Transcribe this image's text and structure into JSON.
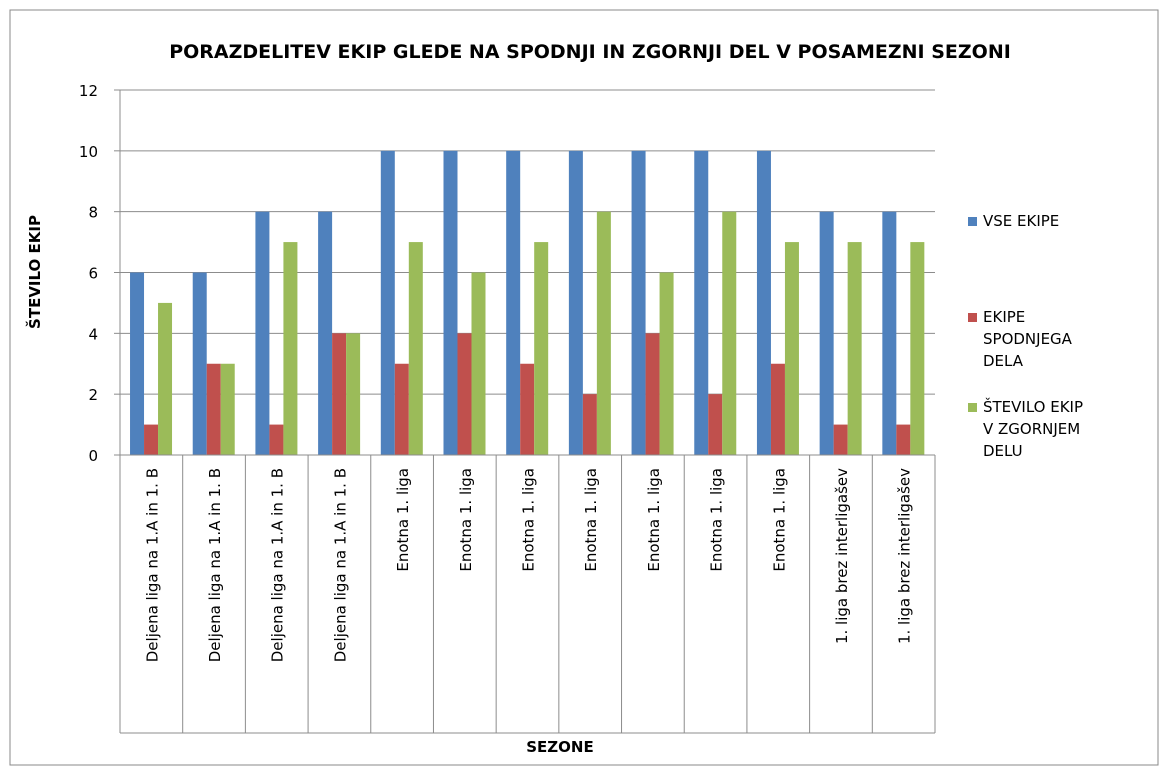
{
  "chart_data": {
    "type": "bar",
    "title": "PORAZDELITEV EKIP GLEDE NA SPODNJI IN ZGORNJI DEL V POSAMEZNI SEZONI",
    "x_label": "SEZONE",
    "y_label": "ŠTEVILO EKIP",
    "categories": [
      "Deljena liga na 1.A in 1. B",
      "Deljena liga na 1.A in 1. B",
      "Deljena liga na 1.A in 1. B",
      "Deljena liga na 1.A in 1. B",
      "Enotna 1. liga",
      "Enotna 1. liga",
      "Enotna 1. liga",
      "Enotna 1. liga",
      "Enotna 1. liga",
      "Enotna 1. liga",
      "Enotna 1. liga",
      "1. liga brez interligašev",
      "1. liga brez interligašev"
    ],
    "series": [
      {
        "name": "VSE EKIPE",
        "color": "#4f81bd",
        "values": [
          6,
          6,
          8,
          8,
          10,
          10,
          10,
          10,
          10,
          10,
          10,
          8,
          8
        ]
      },
      {
        "name": "EKIPE SPODNJEGA DELA",
        "color": "#c0504d",
        "values": [
          1,
          3,
          1,
          4,
          3,
          4,
          3,
          2,
          4,
          2,
          3,
          1,
          1
        ]
      },
      {
        "name": "ŠTEVILO EKIP V ZGORNJEM DELU",
        "color": "#9bbb59",
        "values": [
          5,
          3,
          7,
          4,
          7,
          6,
          7,
          8,
          6,
          8,
          7,
          7,
          7
        ]
      }
    ],
    "ylim": [
      0,
      12
    ],
    "yticks": [
      0,
      2,
      4,
      6,
      8,
      10,
      12
    ],
    "grid": true,
    "legend": "right"
  }
}
